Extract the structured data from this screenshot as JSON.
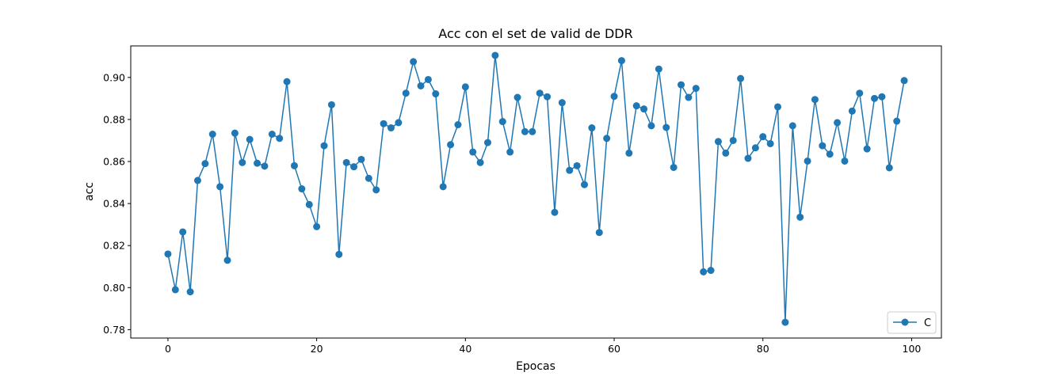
{
  "chart_data": {
    "type": "line",
    "title": "Acc con el set de valid de DDR",
    "xlabel": "Epocas",
    "ylabel": "acc",
    "xlim": [
      -5,
      104
    ],
    "ylim": [
      0.776,
      0.915
    ],
    "xticks": [
      0,
      20,
      40,
      60,
      80,
      100
    ],
    "yticks": [
      0.78,
      0.8,
      0.82,
      0.84,
      0.86,
      0.88,
      0.9
    ],
    "grid": false,
    "legend": "lower-right",
    "series": [
      {
        "name": "C",
        "color": "#1f77b4",
        "marker": "circle",
        "x": [
          0,
          1,
          2,
          3,
          4,
          5,
          6,
          7,
          8,
          9,
          10,
          11,
          12,
          13,
          14,
          15,
          16,
          17,
          18,
          19,
          20,
          21,
          22,
          23,
          24,
          25,
          26,
          27,
          28,
          29,
          30,
          31,
          32,
          33,
          34,
          35,
          36,
          37,
          38,
          39,
          40,
          41,
          42,
          43,
          44,
          45,
          46,
          47,
          48,
          49,
          50,
          51,
          52,
          53,
          54,
          55,
          56,
          57,
          58,
          59,
          60,
          61,
          62,
          63,
          64,
          65,
          66,
          67,
          68,
          69,
          70,
          71,
          72,
          73,
          74,
          75,
          76,
          77,
          78,
          79,
          80,
          81,
          82,
          83,
          84,
          85,
          86,
          87,
          88,
          89,
          90,
          91,
          92,
          93,
          94,
          95,
          96,
          97,
          98,
          99
        ],
        "y": [
          0.816,
          0.799,
          0.8265,
          0.798,
          0.851,
          0.859,
          0.873,
          0.848,
          0.813,
          0.8735,
          0.8595,
          0.8705,
          0.8592,
          0.8578,
          0.873,
          0.871,
          0.898,
          0.858,
          0.847,
          0.8395,
          0.829,
          0.8675,
          0.887,
          0.8158,
          0.8595,
          0.8575,
          0.861,
          0.852,
          0.8465,
          0.878,
          0.876,
          0.8785,
          0.8925,
          0.9075,
          0.896,
          0.899,
          0.8922,
          0.848,
          0.868,
          0.8775,
          0.8955,
          0.8645,
          0.8595,
          0.869,
          0.9105,
          0.879,
          0.8645,
          0.8905,
          0.8742,
          0.8742,
          0.8925,
          0.8908,
          0.8358,
          0.888,
          0.8558,
          0.858,
          0.849,
          0.876,
          0.8262,
          0.871,
          0.891,
          0.908,
          0.864,
          0.8865,
          0.885,
          0.877,
          0.904,
          0.8762,
          0.8572,
          0.8965,
          0.8905,
          0.8948,
          0.8075,
          0.8082,
          0.8695,
          0.864,
          0.87,
          0.8995,
          0.8615,
          0.8665,
          0.8718,
          0.8685,
          0.886,
          0.7835,
          0.877,
          0.8335,
          0.8602,
          0.8895,
          0.8675,
          0.8635,
          0.8785,
          0.8602,
          0.884,
          0.8925,
          0.866,
          0.89,
          0.8908,
          0.857,
          0.8792,
          0.8985
        ]
      }
    ]
  }
}
